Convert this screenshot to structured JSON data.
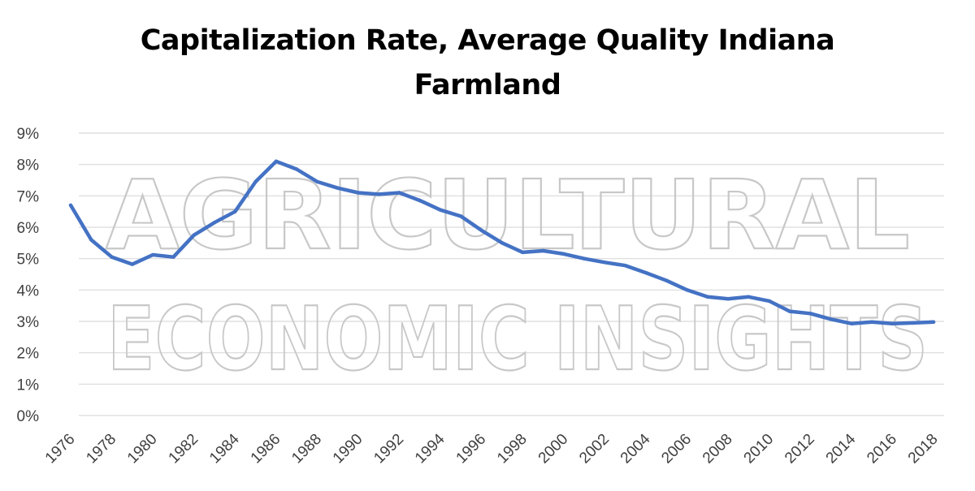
{
  "watermark": {
    "line1": "AGRICULTURAL",
    "line2": "ECONOMIC INSIGHTS",
    "color": "#c8c8c8"
  },
  "chart_data": {
    "type": "line",
    "title": "Capitalization Rate, Average Quality Indiana Farmland",
    "title_lines": [
      "Capitalization Rate, Average Quality Indiana",
      "Farmland"
    ],
    "xlabel": "",
    "ylabel": "",
    "x": [
      1976,
      1977,
      1978,
      1979,
      1980,
      1981,
      1982,
      1983,
      1984,
      1985,
      1986,
      1987,
      1988,
      1989,
      1990,
      1991,
      1992,
      1993,
      1994,
      1995,
      1996,
      1997,
      1998,
      1999,
      2000,
      2001,
      2002,
      2003,
      2004,
      2005,
      2006,
      2007,
      2008,
      2009,
      2010,
      2011,
      2012,
      2013,
      2014,
      2015,
      2016,
      2017,
      2018
    ],
    "x_tick_labels": [
      "1976",
      "1978",
      "1980",
      "1982",
      "1984",
      "1986",
      "1988",
      "1990",
      "1992",
      "1994",
      "1996",
      "1998",
      "2000",
      "2002",
      "2004",
      "2006",
      "2008",
      "2010",
      "2012",
      "2014",
      "2016",
      "2018"
    ],
    "series": [
      {
        "values": [
          6.7,
          5.6,
          5.05,
          4.82,
          5.12,
          5.05,
          5.75,
          6.15,
          6.5,
          7.45,
          8.1,
          7.85,
          7.45,
          7.25,
          7.1,
          7.05,
          7.1,
          6.85,
          6.55,
          6.35,
          5.9,
          5.5,
          5.2,
          5.25,
          5.15,
          5.0,
          4.88,
          4.78,
          4.55,
          4.3,
          4.0,
          3.78,
          3.72,
          3.78,
          3.65,
          3.32,
          3.25,
          3.07,
          2.93,
          2.98,
          2.93,
          2.95,
          2.98
        ],
        "color": "#4472c4"
      }
    ],
    "ylim": [
      0,
      9
    ],
    "y_ticks": [
      0,
      1,
      2,
      3,
      4,
      5,
      6,
      7,
      8,
      9
    ],
    "y_tick_labels": [
      "0%",
      "1%",
      "2%",
      "3%",
      "4%",
      "5%",
      "6%",
      "7%",
      "8%",
      "9%"
    ],
    "grid": true,
    "grid_color": "#d9d9d9",
    "legend": "none"
  }
}
